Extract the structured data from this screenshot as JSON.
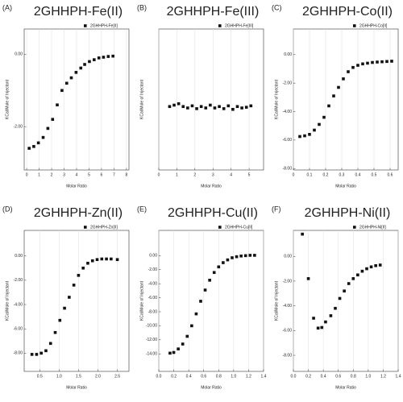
{
  "chart_data": [
    {
      "type": "scatter",
      "label": "(A)",
      "title": "2GHHPH-Fe(II)",
      "x_label": "Molar Ratio",
      "y_label": "KCal/Mole of Injectant",
      "grid": "x",
      "color": "#111111",
      "series": [
        {
          "name": "2GHHPH-Fe[II]",
          "color": "#111111",
          "x": [
            0.2,
            0.57,
            0.94,
            1.32,
            1.7,
            2.08,
            2.45,
            2.83,
            3.21,
            3.58,
            3.96,
            4.34,
            4.65,
            5.03,
            5.41,
            5.79,
            6.16,
            6.54,
            6.92
          ],
          "values": [
            -2.6,
            -2.55,
            -2.45,
            -2.3,
            -2.05,
            -1.8,
            -1.4,
            -1.0,
            -0.8,
            -0.65,
            -0.5,
            -0.38,
            -0.28,
            -0.2,
            -0.15,
            -0.1,
            -0.08,
            -0.06,
            -0.05
          ]
        }
      ],
      "xlim": [
        -0.2,
        8.2
      ],
      "xticks": [
        0,
        1,
        2,
        3,
        4,
        5,
        6,
        7,
        8
      ],
      "ylim": [
        -3.2,
        0.7
      ],
      "yticks": [
        {
          "value": 0,
          "label": "0.00"
        },
        {
          "value": -2,
          "label": "-2.00"
        }
      ]
    },
    {
      "type": "scatter",
      "label": "(B)",
      "title": "2GHHPH-Fe(III)",
      "x_label": "Molar Ratio",
      "y_label": "KCal/Mole of Injectant",
      "grid": "x",
      "color": "#111111",
      "series": [
        {
          "name": "2GHHPH-Fe[III]",
          "color": "#111111",
          "x": [
            0.6,
            0.85,
            1.1,
            1.35,
            1.6,
            1.85,
            2.1,
            2.35,
            2.6,
            2.85,
            3.1,
            3.35,
            3.6,
            3.85,
            4.1,
            4.35,
            4.6,
            4.85,
            5.1
          ],
          "values": [
            -0.1,
            -0.08,
            -0.06,
            -0.1,
            -0.12,
            -0.09,
            -0.13,
            -0.1,
            -0.12,
            -0.08,
            -0.12,
            -0.1,
            -0.13,
            -0.09,
            -0.14,
            -0.1,
            -0.12,
            -0.11,
            -0.09
          ]
        }
      ],
      "xlim": [
        0,
        5.8
      ],
      "xticks": [
        0,
        1,
        2,
        3,
        4,
        5
      ],
      "ylim": [
        -1,
        1
      ]
    },
    {
      "type": "scatter",
      "label": "(C)",
      "title": "2GHHPH-Co(II)",
      "x_label": "Molar Ratio",
      "y_label": "KCal/Mole of Injectant",
      "grid": "x",
      "color": "#111111",
      "series": [
        {
          "name": "2GHHPH-Co[II]",
          "color": "#111111",
          "x": [
            0.04,
            0.07,
            0.1,
            0.13,
            0.16,
            0.19,
            0.22,
            0.25,
            0.28,
            0.31,
            0.34,
            0.37,
            0.4,
            0.43,
            0.46,
            0.49,
            0.52,
            0.55,
            0.58,
            0.61
          ],
          "values": [
            -5.75,
            -5.7,
            -5.6,
            -5.3,
            -4.9,
            -4.4,
            -3.6,
            -2.9,
            -2.3,
            -1.7,
            -1.2,
            -0.9,
            -0.75,
            -0.65,
            -0.6,
            -0.55,
            -0.52,
            -0.5,
            -0.48,
            -0.46
          ]
        }
      ],
      "xlim": [
        0,
        0.65
      ],
      "xticks": [
        0,
        0.1,
        0.2,
        0.3,
        0.4,
        0.5,
        0.6
      ],
      "ylim": [
        -8.1,
        1.8
      ],
      "yticks": [
        {
          "value": 0,
          "label": "0.00"
        },
        {
          "value": -2,
          "label": "-2.00"
        },
        {
          "value": -4,
          "label": "-4.00"
        },
        {
          "value": -6,
          "label": "-6.00"
        },
        {
          "value": -8,
          "label": "-8.00"
        }
      ]
    },
    {
      "type": "scatter",
      "label": "(D)",
      "title": "2GHHPH-Zn(II)",
      "x_label": "Molar Ratio",
      "y_label": "KCal/Mole of Injectant",
      "grid": "x",
      "color": "#111111",
      "series": [
        {
          "name": "2GHHPH-Zn[II]",
          "color": "#111111",
          "x": [
            0.3,
            0.42,
            0.54,
            0.66,
            0.78,
            0.9,
            1.02,
            1.14,
            1.26,
            1.38,
            1.5,
            1.62,
            1.74,
            1.86,
            1.98,
            2.1,
            2.22,
            2.34,
            2.5
          ],
          "values": [
            -8.1,
            -8.1,
            -8.0,
            -7.8,
            -7.2,
            -6.3,
            -5.3,
            -4.3,
            -3.4,
            -2.4,
            -1.6,
            -1.0,
            -0.6,
            -0.4,
            -0.3,
            -0.25,
            -0.25,
            -0.25,
            -0.3
          ]
        }
      ],
      "xlim": [
        0.1,
        2.8
      ],
      "xticks": [
        0.5,
        {
          "value": 1,
          "label": "1.0"
        },
        1.5,
        {
          "value": 2,
          "label": "2.0"
        },
        2.5
      ],
      "ylim": [
        -9.5,
        2.1
      ],
      "yticks": [
        {
          "value": 0,
          "label": "0.00"
        },
        {
          "value": -2,
          "label": "-2.00"
        },
        {
          "value": -4,
          "label": "-4.00"
        },
        {
          "value": -6,
          "label": "-6.00"
        },
        {
          "value": -8,
          "label": "-8.00"
        }
      ]
    },
    {
      "type": "scatter",
      "label": "(E)",
      "title": "2GHHPH-Cu(II)",
      "x_label": "Molar Ratio",
      "y_label": "KCal/Mole of Injectant",
      "grid": "x",
      "color": "#111111",
      "series": [
        {
          "name": "2GHHPH-Cu[II]",
          "color": "#111111",
          "x": [
            0.15,
            0.2,
            0.26,
            0.32,
            0.38,
            0.44,
            0.5,
            0.56,
            0.62,
            0.68,
            0.74,
            0.8,
            0.86,
            0.92,
            0.98,
            1.04,
            1.1,
            1.16,
            1.22,
            1.28
          ],
          "values": [
            -13.9,
            -13.8,
            -13.3,
            -12.6,
            -11.5,
            -10.0,
            -8.3,
            -6.5,
            -4.9,
            -3.5,
            -2.4,
            -1.6,
            -1.0,
            -0.6,
            -0.3,
            -0.15,
            -0.05,
            0,
            0.05,
            0.05
          ]
        }
      ],
      "xlim": [
        0,
        1.4
      ],
      "xticks": [
        {
          "value": 0,
          "label": "0.0"
        },
        0.2,
        0.4,
        0.6,
        0.8,
        {
          "value": 1,
          "label": "1.0"
        },
        1.2,
        1.4
      ],
      "ylim": [
        -16.5,
        3.6
      ],
      "yticks": [
        {
          "value": 0,
          "label": "0.00"
        },
        {
          "value": -2,
          "label": "-2.00"
        },
        {
          "value": -4,
          "label": "-4.00"
        },
        {
          "value": -6,
          "label": "-6.00"
        },
        {
          "value": -8,
          "label": "-8.00"
        },
        {
          "value": -10,
          "label": "-10.00"
        },
        {
          "value": -12,
          "label": "-12.00"
        },
        {
          "value": -14,
          "label": "-14.00"
        }
      ]
    },
    {
      "type": "scatter",
      "label": "(F)",
      "title": "2GHHPH-Ni(II)",
      "x_label": "Molar Ratio",
      "y_label": "KCal/Mole of Injectant",
      "grid": "x",
      "color": "#111111",
      "series": [
        {
          "name": "2GHHPH-Ni[II]",
          "color": "#111111",
          "x": [
            0.12,
            0.2,
            0.27,
            0.33,
            0.38,
            0.43,
            0.5,
            0.56,
            0.62,
            0.68,
            0.74,
            0.8,
            0.86,
            0.92,
            0.98,
            1.04,
            1.1,
            1.16
          ],
          "values": [
            1.8,
            -1.8,
            -5.0,
            -5.8,
            -5.75,
            -5.3,
            -4.8,
            -4.2,
            -3.4,
            -2.8,
            -2.2,
            -1.8,
            -1.5,
            -1.2,
            -1.0,
            -0.85,
            -0.75,
            -0.7
          ]
        }
      ],
      "xlim": [
        0,
        1.4
      ],
      "xticks": [
        {
          "value": 0,
          "label": "0.0"
        },
        0.2,
        0.4,
        0.6,
        0.8,
        {
          "value": 1,
          "label": "1.0"
        },
        1.2,
        1.4
      ],
      "ylim": [
        -9.3,
        2.1
      ],
      "yticks": [
        {
          "value": 0,
          "label": "0.00"
        },
        {
          "value": -2,
          "label": "-2.00"
        },
        {
          "value": -4,
          "label": "-4.00"
        },
        {
          "value": -6,
          "label": "-6.00"
        },
        {
          "value": -8,
          "label": "-8.00"
        }
      ]
    }
  ]
}
